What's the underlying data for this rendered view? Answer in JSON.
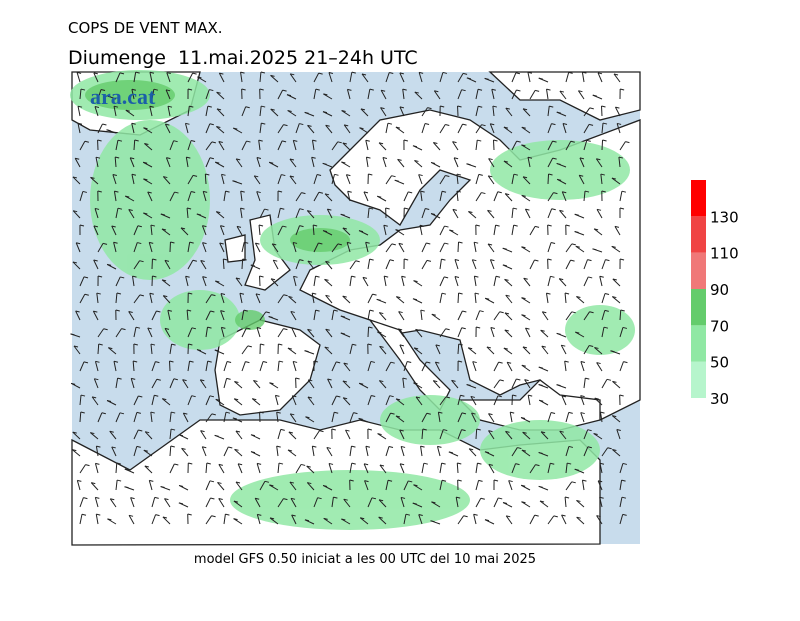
{
  "title": "COPS DE VENT MAX.",
  "subtitle": "Diumenge  11.mai.2025 21–24h UTC",
  "logo": "ara.cat",
  "footer": "model GFS 0.50 iniciat a les 00 UTC del 10 mai 2025",
  "legend": {
    "ticks": [
      30,
      50,
      70,
      90,
      110,
      130
    ],
    "colors": [
      "#b6f5cc",
      "#90e8a4",
      "#64cc6c",
      "#f07878",
      "#f04444",
      "#ff0000"
    ]
  }
}
